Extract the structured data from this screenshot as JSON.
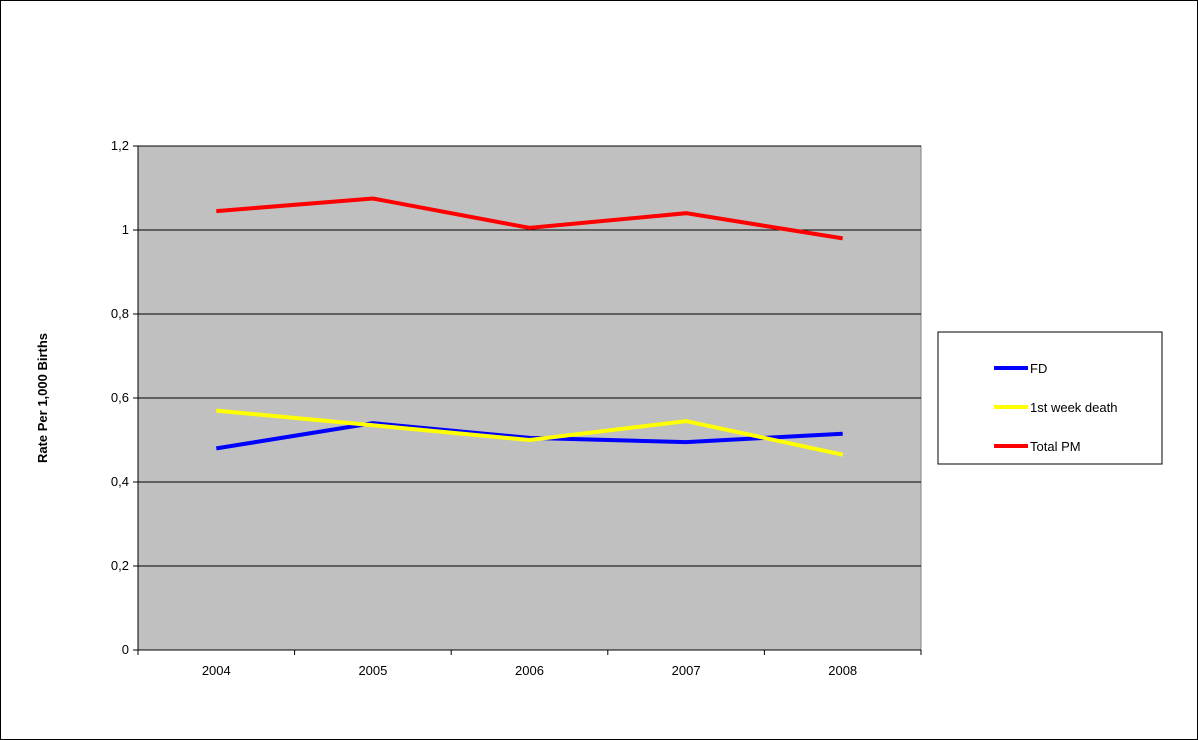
{
  "chart_data": {
    "type": "line",
    "categories": [
      "2004",
      "2005",
      "2006",
      "2007",
      "2008"
    ],
    "series": [
      {
        "name": "FD",
        "color": "#0000FF",
        "values": [
          0.48,
          0.54,
          0.505,
          0.495,
          0.515
        ]
      },
      {
        "name": "1st week death",
        "color": "#FFFF00",
        "values": [
          0.57,
          0.535,
          0.5,
          0.545,
          0.465
        ]
      },
      {
        "name": "Total PM",
        "color": "#FF0000",
        "values": [
          1.045,
          1.075,
          1.005,
          1.04,
          0.98
        ]
      }
    ],
    "ylabel": "Rate Per 1,000 Births",
    "xlabel": "",
    "ylim": [
      0,
      1.2
    ],
    "yticks": [
      0,
      0.2,
      0.4,
      0.6,
      0.8,
      1,
      1.2
    ],
    "ytick_labels": [
      "0",
      "0,2",
      "0,4",
      "0,6",
      "0,8",
      "1",
      "1,2"
    ],
    "grid": true,
    "plot_background": "#C0C0C0",
    "legend_position": "right"
  }
}
